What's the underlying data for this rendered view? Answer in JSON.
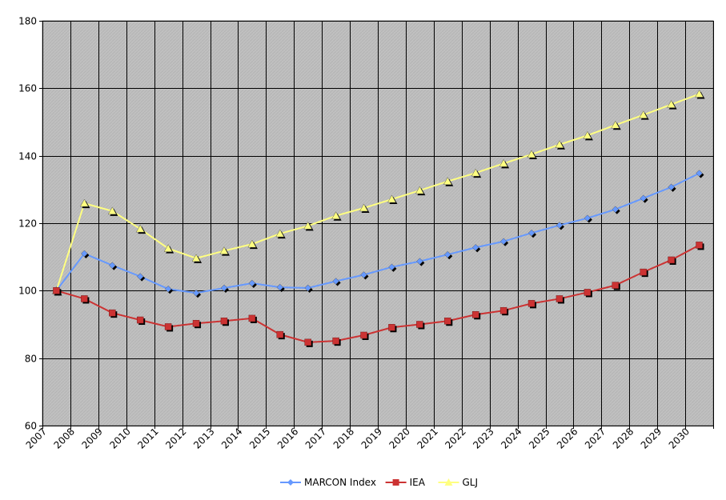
{
  "chart_data": {
    "type": "line",
    "title": "",
    "xlabel": "",
    "ylabel": "",
    "ylim": [
      60,
      180
    ],
    "yticks": [
      60,
      80,
      100,
      120,
      140,
      160,
      180
    ],
    "grid": true,
    "legend_position": "bottom",
    "plot_background": "#c0c0c0",
    "categories": [
      "2007",
      "2008",
      "2009",
      "2010",
      "2011",
      "2012",
      "2013",
      "2014",
      "2015",
      "2016",
      "2017",
      "2018",
      "2019",
      "2020",
      "2021",
      "2022",
      "2023",
      "2024",
      "2025",
      "2026",
      "2027",
      "2028",
      "2029",
      "2030"
    ],
    "series": [
      {
        "name": "MARCON Index",
        "color": "#6699ff",
        "marker": "diamond",
        "values": [
          100,
          111,
          107.5,
          104.2,
          100.5,
          99.3,
          100.8,
          102.2,
          101,
          100.8,
          102.8,
          104.7,
          107,
          108.7,
          110.7,
          112.8,
          114.6,
          117.1,
          119.4,
          121.5,
          124.1,
          127.4,
          130.7,
          134.8
        ]
      },
      {
        "name": "IEA",
        "color": "#cc3333",
        "marker": "square",
        "values": [
          100,
          97.6,
          93.4,
          91.3,
          89.3,
          90.3,
          91,
          91.8,
          87,
          84.7,
          85.1,
          86.8,
          89.1,
          90,
          91,
          92.9,
          94.1,
          96.2,
          97.6,
          99.5,
          101.6,
          105.5,
          109.1,
          113.5
        ]
      },
      {
        "name": "GLJ",
        "color": "#ffff80",
        "marker": "triangle",
        "values": [
          100,
          125.9,
          123.6,
          118.3,
          112.5,
          109.6,
          111.8,
          113.8,
          116.9,
          119.2,
          122.2,
          124.5,
          127.1,
          129.7,
          132.4,
          134.9,
          137.7,
          140.4,
          143.3,
          146,
          149.1,
          152.1,
          155.2,
          158.3
        ]
      }
    ]
  }
}
